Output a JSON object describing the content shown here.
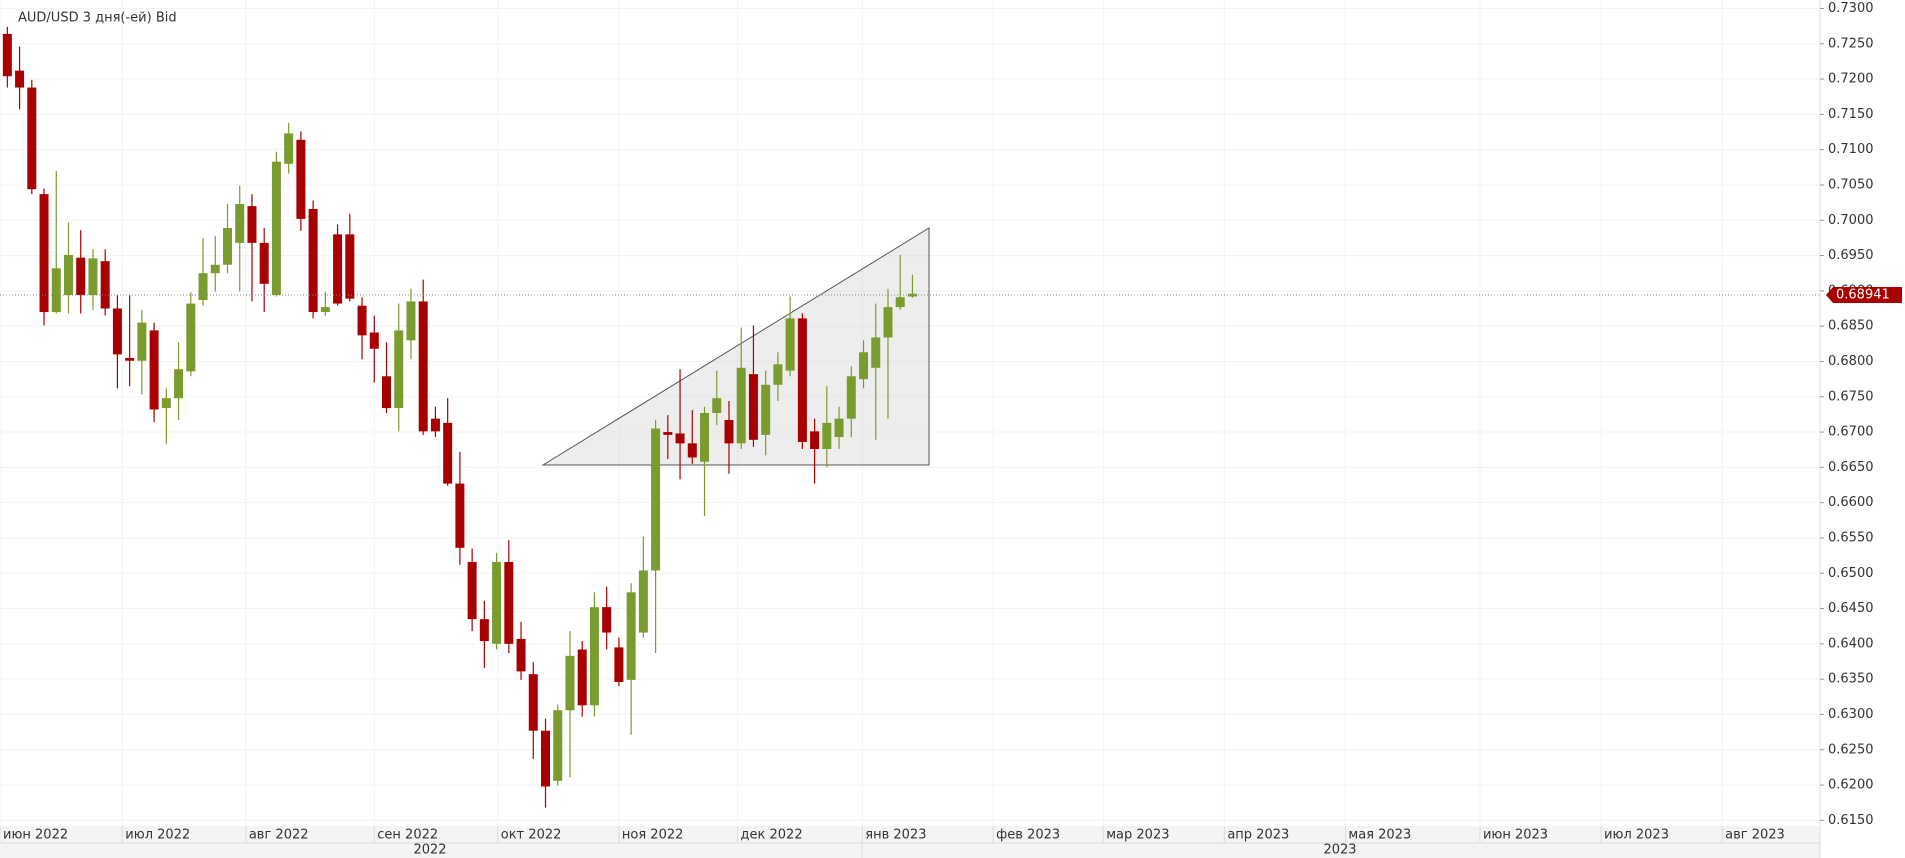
{
  "chart_data": {
    "type": "candlestick",
    "title": "AUD/USD  3 дня(-ей) Bid",
    "up_color": "#7a9c2f",
    "down_color": "#a80000",
    "open": [
      0.7264,
      0.7212,
      0.7188,
      0.7037,
      0.687,
      0.6894,
      0.6947,
      0.6894,
      0.6942,
      0.6875,
      0.6805,
      0.6801,
      0.6844,
      0.6734,
      0.6748,
      0.6786,
      0.6887,
      0.6925,
      0.6937,
      0.6968,
      0.702,
      0.6968,
      0.6894,
      0.708,
      0.7114,
      0.7016,
      0.687,
      0.698,
      0.698,
      0.6879,
      0.6841,
      0.6779,
      0.6734,
      0.683,
      0.6885,
      0.6719,
      0.6713,
      0.6627,
      0.6516,
      0.6435,
      0.64,
      0.6516,
      0.6407,
      0.6357,
      0.6277,
      0.6206,
      0.6306,
      0.6392,
      0.6313,
      0.6452,
      0.6395,
      0.6349,
      0.6416,
      0.6504,
      0.67,
      0.6698,
      0.6684,
      0.6658,
      0.6727,
      0.6717,
      0.6684,
      0.6782,
      0.6696,
      0.6767,
      0.6787,
      0.6861,
      0.6701,
      0.6676,
      0.6693,
      0.6719,
      0.6775,
      0.6791,
      0.6834,
      0.6877,
      0.6892
    ],
    "high": [
      0.7274,
      0.7246,
      0.7199,
      0.7045,
      0.707,
      0.6997,
      0.6986,
      0.6959,
      0.6959,
      0.6894,
      0.6894,
      0.6873,
      0.6855,
      0.6762,
      0.6827,
      0.6898,
      0.6975,
      0.6978,
      0.7023,
      0.7049,
      0.7037,
      0.6989,
      0.7097,
      0.7138,
      0.7126,
      0.7028,
      0.6899,
      0.6994,
      0.7009,
      0.6891,
      0.6865,
      0.6827,
      0.6882,
      0.6903,
      0.6916,
      0.6736,
      0.6748,
      0.6672,
      0.6535,
      0.6461,
      0.6529,
      0.6547,
      0.6431,
      0.6374,
      0.6294,
      0.6314,
      0.6418,
      0.6404,
      0.6473,
      0.6481,
      0.6409,
      0.6486,
      0.6552,
      0.6717,
      0.6724,
      0.6789,
      0.6731,
      0.6736,
      0.6787,
      0.6744,
      0.6848,
      0.6851,
      0.6787,
      0.6813,
      0.6892,
      0.6868,
      0.6719,
      0.6765,
      0.6736,
      0.6793,
      0.683,
      0.6882,
      0.6903,
      0.6951,
      0.6923
    ],
    "low": [
      0.7188,
      0.7157,
      0.7037,
      0.6851,
      0.6868,
      0.6868,
      0.6868,
      0.6873,
      0.6865,
      0.6762,
      0.6765,
      0.6753,
      0.6714,
      0.6683,
      0.6717,
      0.6779,
      0.6879,
      0.6899,
      0.6925,
      0.6899,
      0.6885,
      0.687,
      0.6892,
      0.7066,
      0.6985,
      0.6861,
      0.6865,
      0.6879,
      0.6885,
      0.6803,
      0.677,
      0.6727,
      0.6701,
      0.6803,
      0.6696,
      0.6693,
      0.6624,
      0.6512,
      0.6418,
      0.6366,
      0.6392,
      0.6387,
      0.6349,
      0.6237,
      0.6168,
      0.6199,
      0.6211,
      0.6297,
      0.6297,
      0.6392,
      0.634,
      0.6271,
      0.6409,
      0.6387,
      0.6662,
      0.6633,
      0.6655,
      0.6581,
      0.671,
      0.6641,
      0.6676,
      0.6679,
      0.6667,
      0.6744,
      0.6779,
      0.6676,
      0.6627,
      0.665,
      0.6676,
      0.6693,
      0.6762,
      0.6689,
      0.6719,
      0.6873,
      0.689
    ],
    "close": [
      0.7204,
      0.7188,
      0.7044,
      0.687,
      0.6932,
      0.6951,
      0.6894,
      0.6946,
      0.6875,
      0.681,
      0.6801,
      0.6855,
      0.6732,
      0.6748,
      0.6789,
      0.6882,
      0.6925,
      0.6937,
      0.6989,
      0.7023,
      0.6968,
      0.691,
      0.7083,
      0.7123,
      0.7002,
      0.687,
      0.6877,
      0.6882,
      0.6889,
      0.6837,
      0.6818,
      0.6734,
      0.6844,
      0.6885,
      0.6701,
      0.6701,
      0.6627,
      0.6536,
      0.6435,
      0.6404,
      0.6516,
      0.64,
      0.6361,
      0.6277,
      0.6198,
      0.6306,
      0.6383,
      0.6313,
      0.6452,
      0.6416,
      0.6346,
      0.6473,
      0.6504,
      0.6705,
      0.6696,
      0.6684,
      0.6664,
      0.6727,
      0.6748,
      0.6684,
      0.6791,
      0.6689,
      0.6767,
      0.6796,
      0.6861,
      0.6686,
      0.6676,
      0.6713,
      0.6719,
      0.6779,
      0.6813,
      0.6834,
      0.6877,
      0.6891,
      0.6896
    ],
    "last_price": {
      "value": 0.68941,
      "label": "0.68941"
    },
    "ylim": [
      0.6142,
      0.7312
    ],
    "yticks": [
      {
        "value": 0.615,
        "label": "0.6150"
      },
      {
        "value": 0.62,
        "label": "0.6200"
      },
      {
        "value": 0.625,
        "label": "0.6250"
      },
      {
        "value": 0.63,
        "label": "0.6300"
      },
      {
        "value": 0.635,
        "label": "0.6350"
      },
      {
        "value": 0.64,
        "label": "0.6400"
      },
      {
        "value": 0.645,
        "label": "0.6450"
      },
      {
        "value": 0.65,
        "label": "0.6500"
      },
      {
        "value": 0.655,
        "label": "0.6550"
      },
      {
        "value": 0.66,
        "label": "0.6600"
      },
      {
        "value": 0.665,
        "label": "0.6650"
      },
      {
        "value": 0.67,
        "label": "0.6700"
      },
      {
        "value": 0.675,
        "label": "0.6750"
      },
      {
        "value": 0.68,
        "label": "0.6800"
      },
      {
        "value": 0.685,
        "label": "0.6850"
      },
      {
        "value": 0.69,
        "label": "0.6900"
      },
      {
        "value": 0.695,
        "label": "0.6950"
      },
      {
        "value": 0.7,
        "label": "0.7000"
      },
      {
        "value": 0.705,
        "label": "0.7050"
      },
      {
        "value": 0.71,
        "label": "0.7100"
      },
      {
        "value": 0.715,
        "label": "0.7150"
      },
      {
        "value": 0.72,
        "label": "0.7200"
      },
      {
        "value": 0.725,
        "label": "0.7250"
      },
      {
        "value": 0.73,
        "label": "0.7300"
      }
    ],
    "xlim": [
      -0.6,
      148.2
    ],
    "xticks": [
      {
        "value": -0.6,
        "label": "июн 2022"
      },
      {
        "value": 9.4,
        "label": "июл 2022"
      },
      {
        "value": 19.5,
        "label": "авг 2022"
      },
      {
        "value": 30,
        "label": "сен 2022"
      },
      {
        "value": 40.1,
        "label": "окт 2022"
      },
      {
        "value": 50,
        "label": "ноя 2022"
      },
      {
        "value": 59.7,
        "label": "дек 2022"
      },
      {
        "value": 69.9,
        "label": "янв 2023"
      },
      {
        "value": 80.6,
        "label": "фев 2023"
      },
      {
        "value": 89.6,
        "label": "мар 2023"
      },
      {
        "value": 99.5,
        "label": "апр 2023"
      },
      {
        "value": 109.4,
        "label": "мая 2023"
      },
      {
        "value": 120.4,
        "label": "июн 2023"
      },
      {
        "value": 130.3,
        "label": "июл 2023"
      },
      {
        "value": 140.2,
        "label": "авг 2023"
      }
    ],
    "year_labels": [
      "2022",
      "2023"
    ],
    "grid": true
  }
}
